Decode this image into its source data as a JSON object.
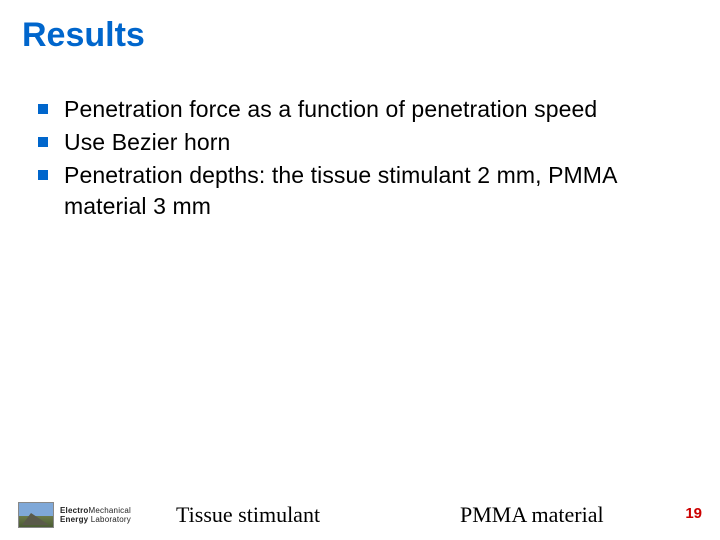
{
  "title": "Results",
  "bullets": [
    "Penetration force as a function of penetration speed",
    "Use Bezier horn",
    "Penetration depths: the tissue stimulant 2 mm, PMMA material 3 mm"
  ],
  "captions": {
    "left": "Tissue stimulant",
    "right": "PMMA material"
  },
  "page_number": "19",
  "logo": {
    "line1a": "Electro",
    "line1b": "Mechanical",
    "line2a": "Energy",
    "line2b": " Laboratory"
  },
  "colors": {
    "title": "#0066cc",
    "bullet_marker": "#0066cc",
    "body_text": "#000000",
    "page_number": "#cc0000",
    "background": "#ffffff"
  }
}
